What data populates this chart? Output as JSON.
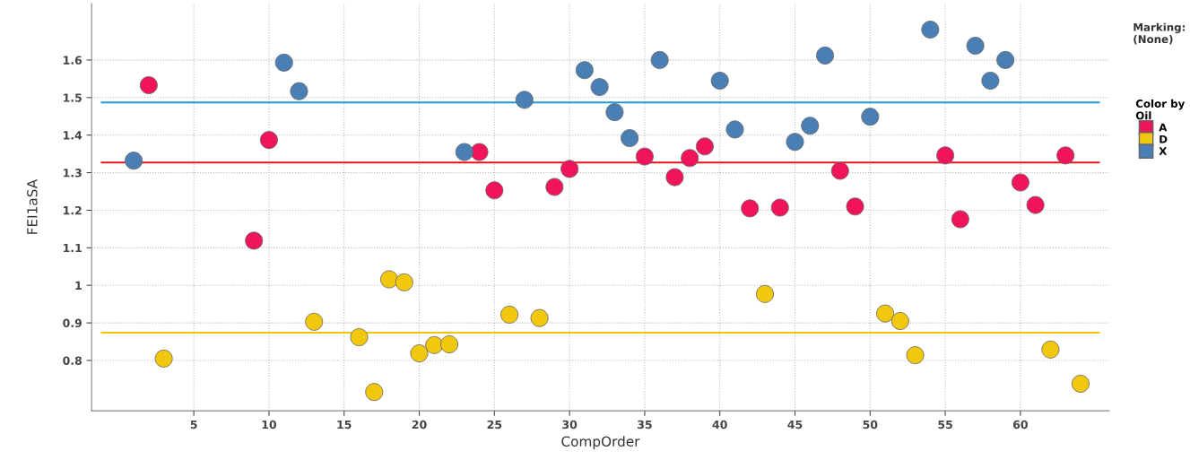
{
  "chart_data": {
    "type": "scatter",
    "xlabel": "CompOrder",
    "ylabel": "FEI1aSA",
    "legend_title": "Color by\nOil",
    "legend": "right",
    "grid": true,
    "marker": "circle",
    "xlim": [
      -1.8,
      65.9
    ],
    "ylim": [
      0.666,
      1.75
    ],
    "xticks": [
      5,
      10,
      15,
      20,
      25,
      30,
      35,
      40,
      45,
      50,
      55,
      60
    ],
    "yticks": [
      0.8,
      0.9,
      1,
      1.1,
      1.2,
      1.3,
      1.4,
      1.5,
      1.6
    ],
    "annotations": [
      "Marking:\n(None)"
    ],
    "series": [
      {
        "name": "A",
        "color": "#f0145a",
        "x": [
          2,
          9,
          10,
          24,
          25,
          29,
          30,
          35,
          37,
          38,
          39,
          42,
          44,
          48,
          49,
          55,
          56,
          60,
          61,
          63
        ],
        "values": [
          1.533,
          1.119,
          1.387,
          1.355,
          1.253,
          1.262,
          1.31,
          1.343,
          1.288,
          1.339,
          1.37,
          1.205,
          1.207,
          1.305,
          1.21,
          1.346,
          1.176,
          1.274,
          1.214,
          1.346
        ]
      },
      {
        "name": "D",
        "color": "#f2c80f",
        "x": [
          3,
          13,
          16,
          17,
          18,
          19,
          20,
          21,
          22,
          26,
          28,
          43,
          51,
          52,
          53,
          62,
          64
        ],
        "values": [
          0.805,
          0.903,
          0.862,
          0.716,
          1.016,
          1.008,
          0.819,
          0.841,
          0.843,
          0.922,
          0.913,
          0.977,
          0.925,
          0.905,
          0.814,
          0.829,
          0.738
        ]
      },
      {
        "name": "X",
        "color": "#4a7fb5",
        "x": [
          1,
          11,
          12,
          23,
          27,
          31,
          32,
          33,
          34,
          36,
          40,
          41,
          45,
          46,
          47,
          50,
          54,
          57,
          58,
          59
        ],
        "values": [
          1.332,
          1.593,
          1.517,
          1.355,
          1.494,
          1.573,
          1.528,
          1.461,
          1.392,
          1.6,
          1.545,
          1.415,
          1.382,
          1.425,
          1.612,
          1.449,
          1.681,
          1.638,
          1.545,
          1.6
        ]
      }
    ],
    "ref_lines": [
      {
        "axis": "y",
        "value": 1.487,
        "color": "#1f9bd0"
      },
      {
        "axis": "y",
        "value": 1.327,
        "color": "#e8141c"
      },
      {
        "axis": "y",
        "value": 0.874,
        "color": "#f2c500"
      }
    ]
  }
}
